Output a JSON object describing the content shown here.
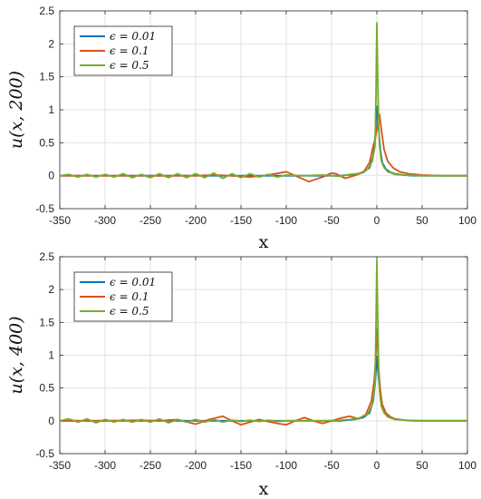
{
  "chart_data": [
    {
      "type": "line",
      "title": "",
      "xlabel": "x",
      "ylabel": "u(x, 200)",
      "xlim": [
        -350,
        100
      ],
      "ylim": [
        -0.5,
        2.5
      ],
      "xticks": [
        -350,
        -300,
        -250,
        -200,
        -150,
        -100,
        -50,
        0,
        50,
        100
      ],
      "yticks": [
        -0.5,
        0,
        0.5,
        1,
        1.5,
        2,
        2.5
      ],
      "xtick_labels": [
        "-350",
        "-300",
        "-250",
        "-200",
        "-150",
        "-100",
        "-50",
        "0",
        "50",
        "100"
      ],
      "ytick_labels": [
        "-0.5",
        "0",
        "0.5",
        "1",
        "1.5",
        "2",
        "2.5"
      ],
      "grid": true,
      "legend_position": "top-left",
      "series": [
        {
          "name": "ϵ = 0.01",
          "color": "#0072BD",
          "x": [
            -350,
            -300,
            -250,
            -200,
            -150,
            -100,
            -60,
            -40,
            -25,
            -15,
            -8,
            -4,
            -2,
            0,
            2,
            4,
            6,
            10,
            15,
            20,
            30,
            40,
            60,
            80,
            100
          ],
          "y": [
            0,
            0,
            0,
            0,
            0,
            0,
            0,
            0,
            0.02,
            0.05,
            0.12,
            0.3,
            0.55,
            1.05,
            0.7,
            0.38,
            0.2,
            0.1,
            0.05,
            0.03,
            0.01,
            0,
            0,
            0,
            0
          ]
        },
        {
          "name": "ϵ = 0.1",
          "color": "#D95319",
          "x": [
            -350,
            -250,
            -200,
            -180,
            -160,
            -140,
            -120,
            -100,
            -90,
            -75,
            -60,
            -50,
            -45,
            -35,
            -25,
            -15,
            -8,
            -4,
            -2,
            0,
            2,
            3,
            5,
            8,
            12,
            18,
            25,
            35,
            50,
            70,
            100
          ],
          "y": [
            0,
            0,
            0,
            0.01,
            0,
            -0.02,
            0.01,
            0.06,
            0.0,
            -0.09,
            -0.02,
            0.04,
            0.03,
            -0.04,
            0.0,
            0.05,
            0.2,
            0.45,
            0.55,
            0.7,
            0.9,
            0.93,
            0.7,
            0.4,
            0.22,
            0.12,
            0.06,
            0.03,
            0.01,
            0,
            0
          ]
        },
        {
          "name": "ϵ = 0.5",
          "color": "#77AC30",
          "x": [
            -350,
            -340,
            -330,
            -320,
            -310,
            -300,
            -290,
            -280,
            -270,
            -260,
            -250,
            -240,
            -230,
            -220,
            -210,
            -200,
            -190,
            -180,
            -170,
            -160,
            -150,
            -140,
            -130,
            -120,
            -110,
            -100,
            -80,
            -60,
            -40,
            -30,
            -20,
            -10,
            -5,
            -2,
            -1,
            0,
            1,
            2,
            3,
            5,
            8,
            12,
            20,
            30,
            50,
            100
          ],
          "y": [
            0,
            0.02,
            -0.02,
            0.02,
            -0.02,
            0.02,
            -0.02,
            0.03,
            -0.03,
            0.02,
            -0.03,
            0.03,
            -0.03,
            0.03,
            -0.03,
            0.03,
            -0.03,
            0.04,
            -0.04,
            0.03,
            -0.03,
            0.03,
            -0.02,
            0.02,
            -0.02,
            0.01,
            0,
            0.01,
            -0.01,
            0.02,
            0.03,
            0.1,
            0.22,
            0.45,
            1.2,
            2.32,
            1.5,
            0.8,
            0.45,
            0.22,
            0.12,
            0.06,
            0.02,
            0.01,
            0,
            0
          ]
        }
      ]
    },
    {
      "type": "line",
      "title": "",
      "xlabel": "x",
      "ylabel": "u(x, 400)",
      "xlim": [
        -350,
        100
      ],
      "ylim": [
        -0.5,
        2.5
      ],
      "xticks": [
        -350,
        -300,
        -250,
        -200,
        -150,
        -100,
        -50,
        0,
        50,
        100
      ],
      "yticks": [
        -0.5,
        0,
        0.5,
        1,
        1.5,
        2,
        2.5
      ],
      "xtick_labels": [
        "-350",
        "-300",
        "-250",
        "-200",
        "-150",
        "-100",
        "-50",
        "0",
        "50",
        "100"
      ],
      "ytick_labels": [
        "-0.5",
        "0",
        "0.5",
        "1",
        "1.5",
        "2",
        "2.5"
      ],
      "grid": true,
      "legend_position": "top-left",
      "series": [
        {
          "name": "ϵ = 0.01",
          "color": "#0072BD",
          "x": [
            -350,
            -300,
            -250,
            -200,
            -150,
            -100,
            -60,
            -40,
            -25,
            -15,
            -8,
            -4,
            -2,
            0,
            2,
            4,
            6,
            10,
            15,
            20,
            30,
            40,
            60,
            80,
            100
          ],
          "y": [
            0,
            0,
            0,
            0,
            0,
            0,
            0,
            0,
            0.02,
            0.05,
            0.12,
            0.3,
            0.55,
            0.98,
            0.65,
            0.35,
            0.2,
            0.1,
            0.05,
            0.03,
            0.01,
            0,
            0,
            0,
            0
          ]
        },
        {
          "name": "ϵ = 0.1",
          "color": "#D95319",
          "x": [
            -350,
            -300,
            -260,
            -240,
            -220,
            -200,
            -185,
            -170,
            -160,
            -150,
            -140,
            -130,
            -120,
            -110,
            -100,
            -90,
            -80,
            -70,
            -60,
            -50,
            -40,
            -30,
            -20,
            -12,
            -6,
            -3,
            -1,
            0,
            1,
            2,
            4,
            6,
            10,
            15,
            20,
            30,
            50,
            100
          ],
          "y": [
            0,
            0,
            0.01,
            0.0,
            0.02,
            -0.05,
            0.02,
            0.07,
            0.0,
            -0.06,
            -0.02,
            0.02,
            -0.01,
            -0.04,
            -0.06,
            0.0,
            0.05,
            0.0,
            -0.04,
            0.0,
            0.04,
            0.07,
            0.03,
            0.1,
            0.3,
            0.6,
            1.0,
            1.4,
            1.2,
            0.8,
            0.45,
            0.25,
            0.12,
            0.06,
            0.03,
            0.01,
            0,
            0
          ]
        },
        {
          "name": "ϵ = 0.5",
          "color": "#77AC30",
          "x": [
            -350,
            -340,
            -330,
            -320,
            -310,
            -300,
            -290,
            -280,
            -270,
            -260,
            -250,
            -240,
            -230,
            -220,
            -210,
            -200,
            -190,
            -180,
            -170,
            -160,
            -150,
            -140,
            -130,
            -120,
            -110,
            -100,
            -80,
            -60,
            -40,
            -30,
            -20,
            -10,
            -5,
            -2,
            -1,
            0,
            1,
            2,
            3,
            5,
            8,
            12,
            20,
            30,
            50,
            100
          ],
          "y": [
            0,
            0.03,
            -0.02,
            0.03,
            -0.03,
            0.02,
            -0.02,
            0.02,
            -0.02,
            0.02,
            -0.02,
            0.03,
            -0.03,
            0.02,
            -0.02,
            0.02,
            -0.02,
            0.02,
            -0.02,
            0.01,
            -0.01,
            0.01,
            -0.01,
            0.01,
            -0.01,
            0,
            0,
            0,
            0.01,
            0.02,
            0.04,
            0.1,
            0.25,
            0.55,
            1.4,
            2.45,
            1.6,
            0.85,
            0.45,
            0.22,
            0.12,
            0.06,
            0.02,
            0.01,
            0,
            0
          ]
        }
      ]
    }
  ]
}
